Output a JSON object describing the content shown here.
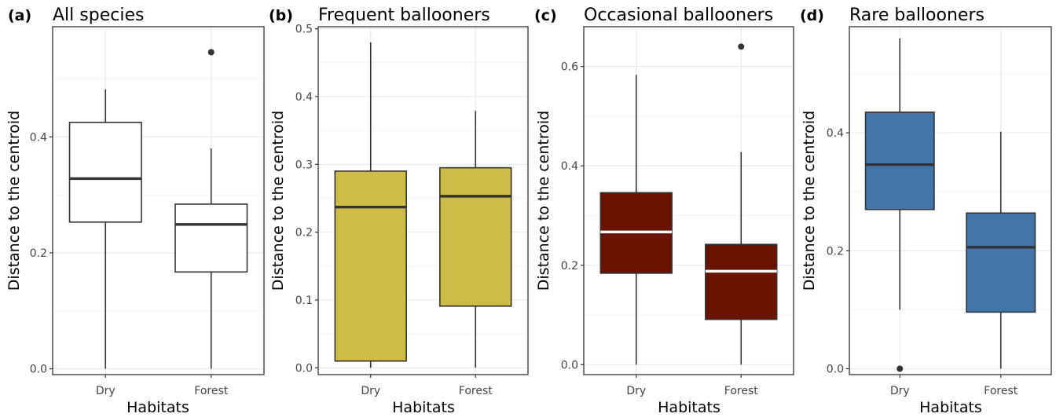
{
  "chart_data": [
    {
      "type": "box",
      "tag": "(a)",
      "title": "All species",
      "xlabel": "Habitats",
      "ylabel": "Distance to the centroid",
      "ylim": [
        -0.01,
        0.59
      ],
      "yticks": [
        0.0,
        0.2,
        0.4
      ],
      "ytick_labels": [
        "0.0",
        "0.2",
        "0.4"
      ],
      "categories": [
        "Dry",
        "Forest"
      ],
      "fill": "#ffffff",
      "median_color": "#333333",
      "boxes": [
        {
          "category": "Dry",
          "min": 0.0,
          "q1": 0.253,
          "median": 0.328,
          "q3": 0.425,
          "max": 0.482,
          "outliers": []
        },
        {
          "category": "Forest",
          "min": 0.0,
          "q1": 0.167,
          "median": 0.249,
          "q3": 0.284,
          "max": 0.38,
          "outliers": [
            0.546
          ]
        }
      ]
    },
    {
      "type": "box",
      "tag": "(b)",
      "title": "Frequent ballooners",
      "xlabel": "Habitats",
      "ylabel": "Distance to the centroid",
      "ylim": [
        -0.01,
        0.503
      ],
      "yticks": [
        0.0,
        0.1,
        0.2,
        0.3,
        0.4,
        0.5
      ],
      "ytick_labels": [
        "0.0",
        "0.1",
        "0.2",
        "0.3",
        "0.4",
        "0.5"
      ],
      "categories": [
        "Dry",
        "Forest"
      ],
      "fill": "#CDBC45",
      "median_color": "#333333",
      "boxes": [
        {
          "category": "Dry",
          "min": 0.0,
          "q1": 0.01,
          "median": 0.237,
          "q3": 0.29,
          "max": 0.48,
          "outliers": []
        },
        {
          "category": "Forest",
          "min": 0.0,
          "q1": 0.091,
          "median": 0.253,
          "q3": 0.295,
          "max": 0.379,
          "outliers": []
        }
      ]
    },
    {
      "type": "box",
      "tag": "(c)",
      "title": "Occasional ballooners",
      "xlabel": "Habitats",
      "ylabel": "Distance to the centroid",
      "ylim": [
        -0.02,
        0.68
      ],
      "yticks": [
        0.0,
        0.2,
        0.4,
        0.6
      ],
      "ytick_labels": [
        "0.0",
        "0.2",
        "0.4",
        "0.6"
      ],
      "categories": [
        "Dry",
        "Forest"
      ],
      "fill": "#6A1300",
      "median_color": "#ffffff",
      "boxes": [
        {
          "category": "Dry",
          "min": 0.0,
          "q1": 0.184,
          "median": 0.267,
          "q3": 0.346,
          "max": 0.583,
          "outliers": []
        },
        {
          "category": "Forest",
          "min": 0.0,
          "q1": 0.091,
          "median": 0.188,
          "q3": 0.242,
          "max": 0.428,
          "outliers": [
            0.64
          ]
        }
      ]
    },
    {
      "type": "box",
      "tag": "(d)",
      "title": "Rare ballooners",
      "xlabel": "Habitats",
      "ylabel": "Distance to the centroid",
      "ylim": [
        -0.01,
        0.58
      ],
      "yticks": [
        0.0,
        0.2,
        0.4
      ],
      "ytick_labels": [
        "0.0",
        "0.2",
        "0.4"
      ],
      "categories": [
        "Dry",
        "Forest"
      ],
      "fill": "#4275AA",
      "median_color": "#333333",
      "boxes": [
        {
          "category": "Dry",
          "min": 0.1,
          "q1": 0.27,
          "median": 0.346,
          "q3": 0.435,
          "max": 0.56,
          "outliers": [
            0.0
          ]
        },
        {
          "category": "Forest",
          "min": 0.0,
          "q1": 0.096,
          "median": 0.206,
          "q3": 0.264,
          "max": 0.402,
          "outliers": []
        }
      ]
    }
  ]
}
